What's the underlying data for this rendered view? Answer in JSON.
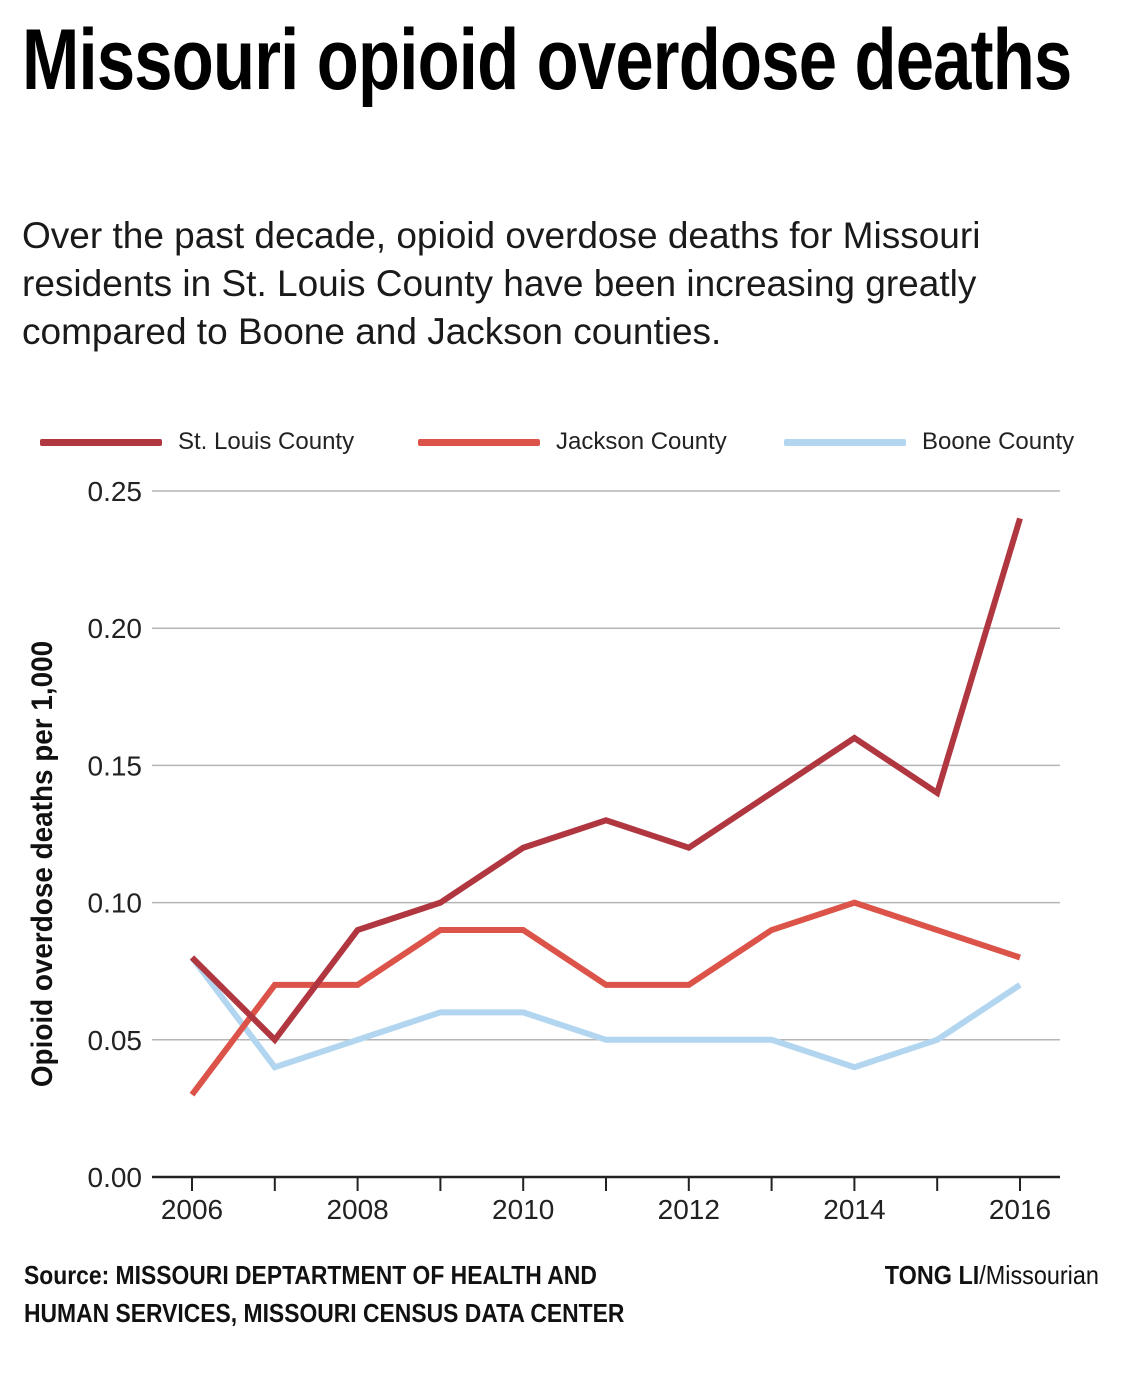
{
  "title": "Missouri opioid overdose deaths",
  "subtitle": "Over the past decade, opioid overdose deaths for Missouri residents in St. Louis County have been increasing greatly compared to Boone and Jackson counties.",
  "source": "Source: MISSOURI DEPTARTMENT OF HEALTH AND HUMAN SERVICES, MISSOURI CENSUS DATA CENTER",
  "credit": {
    "name": "TONG LI",
    "outlet": "/Missourian"
  },
  "colors": {
    "stlouis": "#b03640",
    "jackson": "#dc5449",
    "boone": "#b2d5f0",
    "grid": "#b5b5b5",
    "axis": "#222222"
  },
  "chart_data": {
    "type": "line",
    "x": [
      2006,
      2007,
      2008,
      2009,
      2010,
      2011,
      2012,
      2013,
      2014,
      2015,
      2016
    ],
    "x_tick_labels": [
      "2006",
      "2008",
      "2010",
      "2012",
      "2014",
      "2016"
    ],
    "y_tick_labels": [
      "0.00",
      "0.05",
      "0.10",
      "0.15",
      "0.20",
      "0.25"
    ],
    "ylabel": "Opioid overdose deaths per 1,000",
    "xlabel": "",
    "ylim": [
      0,
      0.25
    ],
    "xlim": [
      2006,
      2016
    ],
    "grid": true,
    "legend_position": "top",
    "series": [
      {
        "name": "St. Louis County",
        "color": "#b03640",
        "values": [
          0.08,
          0.05,
          0.09,
          0.1,
          0.12,
          0.13,
          0.12,
          0.14,
          0.16,
          0.14,
          0.24
        ]
      },
      {
        "name": "Jackson County",
        "color": "#dc5449",
        "values": [
          0.03,
          0.07,
          0.07,
          0.09,
          0.09,
          0.07,
          0.07,
          0.09,
          0.1,
          0.09,
          0.08
        ]
      },
      {
        "name": "Boone County",
        "color": "#b2d5f0",
        "values": [
          0.08,
          0.04,
          0.05,
          0.06,
          0.06,
          0.05,
          0.05,
          0.05,
          0.04,
          0.05,
          0.07
        ]
      }
    ]
  }
}
